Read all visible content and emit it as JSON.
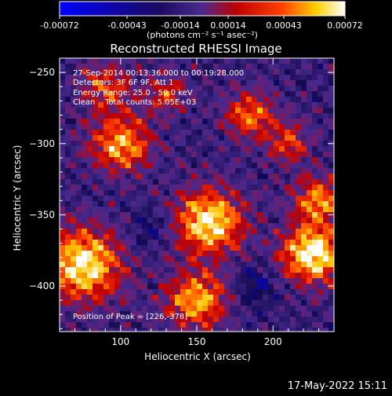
{
  "chart_data": {
    "type": "heatmap",
    "title": "Reconstructed RHESSI Image",
    "xlabel": "Heliocentric X (arcsec)",
    "ylabel": "Heliocentric Y (arcsec)",
    "xlim": [
      60,
      240
    ],
    "ylim": [
      -432,
      -240
    ],
    "xticks": [
      100,
      150,
      200
    ],
    "yticks": [
      -250,
      -300,
      -350,
      -400
    ],
    "colorbar": {
      "ticks": [
        "-0.00072",
        "-0.00043",
        "-0.00014",
        "0.00014",
        "0.00043",
        "0.00072"
      ],
      "unit_label": "(photons cm⁻² s⁻¹ asec⁻²)",
      "vmin": -0.00072,
      "vmax": 0.00072
    },
    "annotations": [
      "27-Sep-2014 00:13:36.000 to 00:19:28.000",
      "Detectors: 3F 6F 9F, Att 1",
      "Energy Range: 25.0 - 50.0 keV",
      "Clean    Total counts: 5.05E+03"
    ],
    "peak_label": "Position of Peak = [226,-378]",
    "peak": {
      "x": 226,
      "y": -378
    },
    "colors": {
      "low": "#0000ff",
      "mid": "#4b2a8c",
      "high": "#ff2000",
      "top": "#ffffff"
    }
  },
  "footer": {
    "timestamp": "17-May-2022 15:11"
  }
}
